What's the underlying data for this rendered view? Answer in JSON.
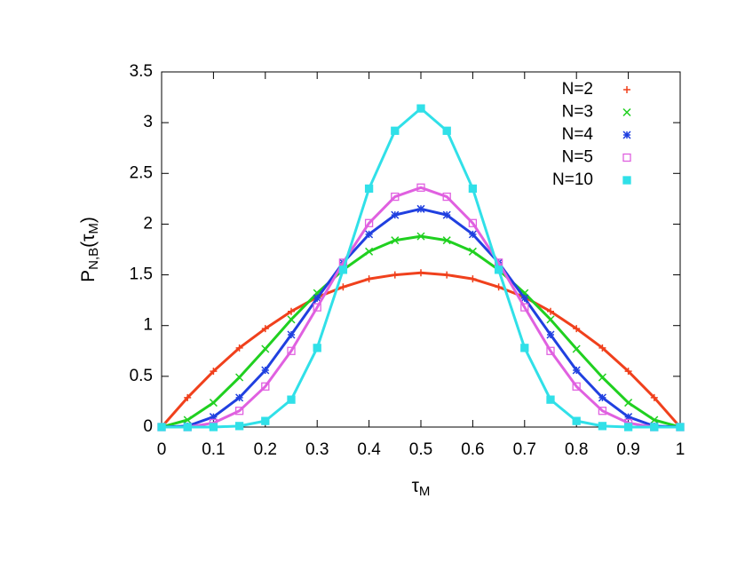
{
  "chart_data": {
    "type": "line",
    "xlabel": [
      "τ",
      "M"
    ],
    "ylabel": [
      "P",
      "N,B",
      "(τ",
      "M",
      ")"
    ],
    "x": [
      0,
      0.05,
      0.1,
      0.15,
      0.2,
      0.25,
      0.3,
      0.35,
      0.4,
      0.45,
      0.5,
      0.55,
      0.6,
      0.65,
      0.7,
      0.75,
      0.8,
      0.85,
      0.9,
      0.95,
      1
    ],
    "series": [
      {
        "name": "N=2",
        "color": "#f0401c",
        "marker": "plus",
        "values": [
          0,
          0.29,
          0.55,
          0.78,
          0.97,
          1.14,
          1.28,
          1.38,
          1.46,
          1.5,
          1.52,
          1.5,
          1.46,
          1.38,
          1.28,
          1.14,
          0.97,
          0.78,
          0.55,
          0.29,
          0
        ]
      },
      {
        "name": "N=3",
        "color": "#20d020",
        "marker": "cross",
        "values": [
          0,
          0.07,
          0.24,
          0.49,
          0.77,
          1.06,
          1.32,
          1.55,
          1.73,
          1.84,
          1.88,
          1.84,
          1.73,
          1.55,
          1.32,
          1.06,
          0.77,
          0.49,
          0.24,
          0.07,
          0
        ]
      },
      {
        "name": "N=4",
        "color": "#2040e0",
        "marker": "star",
        "values": [
          0,
          0.01,
          0.1,
          0.29,
          0.56,
          0.91,
          1.27,
          1.62,
          1.9,
          2.09,
          2.15,
          2.09,
          1.9,
          1.62,
          1.27,
          0.91,
          0.56,
          0.29,
          0.1,
          0.01,
          0
        ]
      },
      {
        "name": "N=5",
        "color": "#e060e0",
        "marker": "square-open",
        "values": [
          0,
          0,
          0.04,
          0.16,
          0.4,
          0.75,
          1.18,
          1.62,
          2.01,
          2.27,
          2.36,
          2.27,
          2.01,
          1.62,
          1.18,
          0.75,
          0.4,
          0.16,
          0.04,
          0,
          0
        ]
      },
      {
        "name": "N=10",
        "color": "#30e0e8",
        "marker": "square-filled",
        "values": [
          0,
          0,
          0,
          0.01,
          0.06,
          0.27,
          0.78,
          1.55,
          2.35,
          2.92,
          3.14,
          2.92,
          2.35,
          1.55,
          0.78,
          0.27,
          0.06,
          0.01,
          0,
          0,
          0
        ]
      }
    ],
    "xlim": [
      0,
      1
    ],
    "xticks": [
      0,
      0.1,
      0.2,
      0.3,
      0.4,
      0.5,
      0.6,
      0.7,
      0.8,
      0.9,
      1
    ],
    "ylim": [
      0,
      3.5
    ],
    "yticks": [
      0,
      0.5,
      1,
      1.5,
      2,
      2.5,
      3,
      3.5
    ],
    "grid": false,
    "legend": "upper right"
  }
}
